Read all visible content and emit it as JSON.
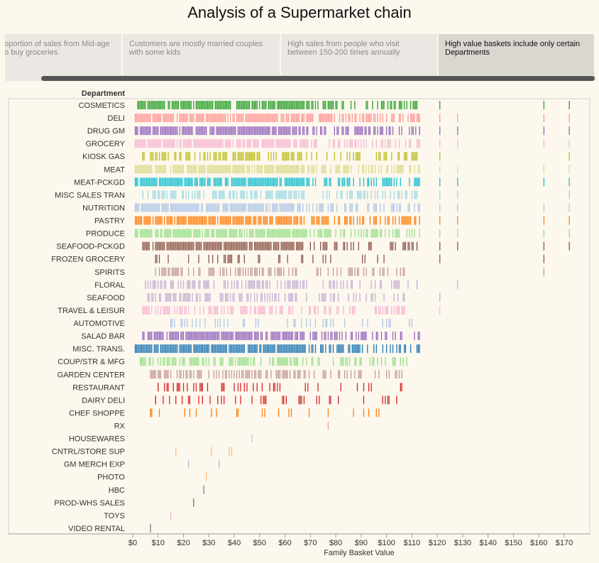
{
  "title": "Analysis of a Supermarket chain",
  "story_points": [
    {
      "text": "Highest proportion of sales from Mid-age people who buy groceries",
      "active": false
    },
    {
      "text": "Customers are mostly married couples with some kids",
      "active": false
    },
    {
      "text": "High sales from people who visit between 150-200 times annually",
      "active": false
    },
    {
      "text": "High value baskets include only certain Departments",
      "active": true
    }
  ],
  "chart_data": {
    "type": "strip",
    "title": "",
    "xlabel": "Family Basket Value",
    "ylabel": "Department",
    "xlim": [
      0,
      175
    ],
    "xticks": [
      0,
      10,
      20,
      30,
      40,
      50,
      60,
      70,
      80,
      90,
      100,
      110,
      120,
      130,
      140,
      150,
      160,
      170
    ],
    "xtick_labels": [
      "$0",
      "$10",
      "$20",
      "$30",
      "$40",
      "$50",
      "$60",
      "$70",
      "$80",
      "$90",
      "$100",
      "$110",
      "$120",
      "$130",
      "$140",
      "$150",
      "$160",
      "$170"
    ],
    "grid": false,
    "departments": [
      {
        "name": "COSMETICS",
        "color": "#2ca02c",
        "range": [
          2,
          112
        ],
        "mode": "dense",
        "extras": [
          121,
          162,
          172
        ]
      },
      {
        "name": "DELI",
        "color": "#ff9896",
        "range": [
          1,
          113
        ],
        "mode": "dense",
        "extras": [
          121,
          128,
          162,
          172
        ]
      },
      {
        "name": "DRUG GM",
        "color": "#9467bd",
        "range": [
          1,
          113
        ],
        "mode": "dense",
        "extras": [
          121,
          128,
          162,
          172
        ]
      },
      {
        "name": "GROCERY",
        "color": "#f7b6d2",
        "range": [
          1,
          113
        ],
        "mode": "dense",
        "extras": [
          121,
          128,
          162,
          172
        ]
      },
      {
        "name": "KIOSK GAS",
        "color": "#bcbd22",
        "range": [
          4,
          112
        ],
        "mode": "medium",
        "extras": [
          121,
          172
        ]
      },
      {
        "name": "MEAT",
        "color": "#dbdb8d",
        "range": [
          1,
          113
        ],
        "mode": "dense",
        "extras": [
          121,
          128,
          162,
          172
        ]
      },
      {
        "name": "MEAT-PCKGD",
        "color": "#17becf",
        "range": [
          1,
          113
        ],
        "mode": "dense",
        "extras": [
          121,
          128,
          162,
          172
        ]
      },
      {
        "name": "MISC SALES TRAN",
        "color": "#9edae5",
        "range": [
          4,
          112
        ],
        "mode": "medium",
        "extras": [
          121,
          128,
          172
        ]
      },
      {
        "name": "NUTRITION",
        "color": "#aec7e8",
        "range": [
          1,
          113
        ],
        "mode": "dense",
        "extras": [
          121,
          128,
          162,
          172
        ]
      },
      {
        "name": "PASTRY",
        "color": "#ff7f0e",
        "range": [
          1,
          113
        ],
        "mode": "dense",
        "extras": [
          121,
          128,
          162,
          172
        ]
      },
      {
        "name": "PRODUCE",
        "color": "#98df8a",
        "range": [
          1,
          113
        ],
        "mode": "dense",
        "extras": [
          121,
          128,
          162,
          172
        ]
      },
      {
        "name": "SEAFOOD-PCKGD",
        "color": "#8c564b",
        "range": [
          4,
          112
        ],
        "mode": "dense",
        "extras": [
          121,
          128,
          162,
          172
        ]
      },
      {
        "name": "FROZEN GROCERY",
        "color": "#8c564b",
        "range": [
          9,
          99
        ],
        "mode": "sparse",
        "extras": [
          121,
          162
        ]
      },
      {
        "name": "SPIRITS",
        "color": "#c49c94",
        "range": [
          9,
          107
        ],
        "mode": "medium",
        "extras": [
          162
        ]
      },
      {
        "name": "FLORAL",
        "color": "#c5b0d5",
        "range": [
          5,
          112
        ],
        "mode": "medium",
        "extras": [
          128
        ]
      },
      {
        "name": "SEAFOOD",
        "color": "#c5b0d5",
        "range": [
          6,
          107
        ],
        "mode": "medium",
        "extras": [
          121
        ]
      },
      {
        "name": "TRAVEL & LEISUR",
        "color": "#f7b6d2",
        "range": [
          4,
          107
        ],
        "mode": "medium",
        "extras": [
          121
        ]
      },
      {
        "name": "AUTOMOTIVE",
        "color": "#aec7e8",
        "range": [
          15,
          110
        ],
        "mode": "sparse",
        "extras": []
      },
      {
        "name": "SALAD BAR",
        "color": "#9467bd",
        "range": [
          4,
          113
        ],
        "mode": "dense",
        "extras": []
      },
      {
        "name": "MISC. TRANS.",
        "color": "#1f77b4",
        "range": [
          1,
          113
        ],
        "mode": "dense",
        "extras": []
      },
      {
        "name": "COUP/STR & MFG",
        "color": "#98df8a",
        "range": [
          3,
          108
        ],
        "mode": "medium",
        "extras": []
      },
      {
        "name": "GARDEN CENTER",
        "color": "#c49c94",
        "range": [
          7,
          106
        ],
        "mode": "medium",
        "extras": []
      },
      {
        "name": "RESTAURANT",
        "color": "#d62728",
        "range": [
          10,
          106
        ],
        "mode": "sparse",
        "extras": []
      },
      {
        "name": "DAIRY DELI",
        "color": "#d62728",
        "range": [
          9,
          104
        ],
        "mode": "sparse",
        "extras": []
      },
      {
        "name": "CHEF SHOPPE",
        "color": "#ff7f0e",
        "range": [
          7,
          97
        ],
        "mode": "sparse",
        "extras": []
      },
      {
        "name": "RX",
        "color": "#ff9896",
        "values": [
          77
        ]
      },
      {
        "name": "HOUSEWARES",
        "color": "#c7c7c7",
        "values": [
          47
        ]
      },
      {
        "name": "CNTRL/STORE SUP",
        "color": "#ffbb78",
        "values": [
          17,
          31,
          38,
          39
        ]
      },
      {
        "name": "GM MERCH EXP",
        "color": "#c5b0d5",
        "values": [
          22,
          34
        ]
      },
      {
        "name": "PHOTO",
        "color": "#ffbb78",
        "values": [
          29
        ]
      },
      {
        "name": "HBC",
        "color": "#7f7f7f",
        "values": [
          28
        ]
      },
      {
        "name": "PROD-WHS SALES",
        "color": "#2ca02c",
        "values": [
          24
        ]
      },
      {
        "name": "TOYS",
        "color": "#f7b6d2",
        "values": [
          15
        ]
      },
      {
        "name": "VIDEO RENTAL",
        "color": "#7f7f7f",
        "values": [
          7
        ]
      }
    ]
  }
}
